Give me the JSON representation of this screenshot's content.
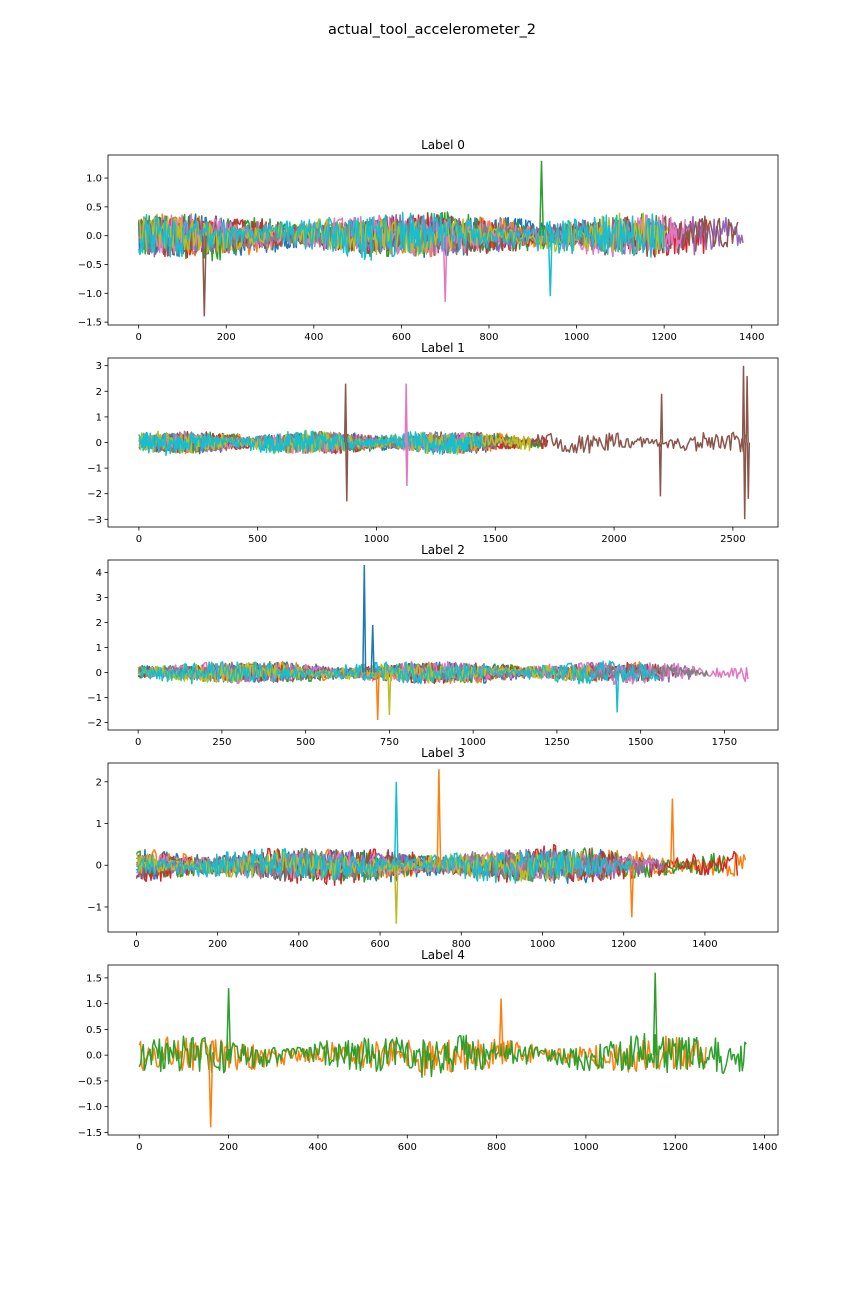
{
  "figure": {
    "title": "actual_tool_accelerometer_2"
  },
  "palette": [
    "#1f77b4",
    "#ff7f0e",
    "#2ca02c",
    "#d62728",
    "#9467bd",
    "#8c564b",
    "#e377c2",
    "#7f7f7f",
    "#bcbd22",
    "#17becf"
  ],
  "chart_data": [
    {
      "type": "line",
      "title": "Label 0",
      "xlim": [
        -70,
        1460
      ],
      "ylim": [
        -1.55,
        1.4
      ],
      "xticks": [
        0,
        200,
        400,
        600,
        800,
        1000,
        1200,
        1400
      ],
      "yticks": [
        -1.5,
        -1.0,
        -0.5,
        0.0,
        0.5,
        1.0
      ],
      "ytick_labels": [
        "−1.5",
        "−1.0",
        "−0.5",
        "0.0",
        "0.5",
        "1.0"
      ],
      "series": [
        {
          "color_index": 0,
          "length": 1000,
          "amplitude": 0.35
        },
        {
          "color_index": 1,
          "length": 1100,
          "amplitude": 0.35
        },
        {
          "color_index": 2,
          "length": 1200,
          "amplitude": 0.4
        },
        {
          "color_index": 3,
          "length": 1300,
          "amplitude": 0.35
        },
        {
          "color_index": 4,
          "length": 1380,
          "amplitude": 0.35
        },
        {
          "color_index": 5,
          "length": 1370,
          "amplitude": 0.35
        },
        {
          "color_index": 6,
          "length": 1250,
          "amplitude": 0.35
        },
        {
          "color_index": 7,
          "length": 1150,
          "amplitude": 0.3
        },
        {
          "color_index": 8,
          "length": 1210,
          "amplitude": 0.35
        },
        {
          "color_index": 9,
          "length": 1200,
          "amplitude": 0.4
        }
      ],
      "peaks": [
        {
          "series": 5,
          "x": 150,
          "y": -1.4
        },
        {
          "series": 2,
          "x": 920,
          "y": 1.3
        },
        {
          "series": 6,
          "x": 700,
          "y": -1.15
        },
        {
          "series": 9,
          "x": 940,
          "y": -1.05
        }
      ]
    },
    {
      "type": "line",
      "title": "Label 1",
      "xlim": [
        -130,
        2690
      ],
      "ylim": [
        -3.3,
        3.3
      ],
      "xticks": [
        0,
        500,
        1000,
        1500,
        2000,
        2500
      ],
      "yticks": [
        -3,
        -2,
        -1,
        0,
        1,
        2,
        3
      ],
      "ytick_labels": [
        "−3",
        "−2",
        "−1",
        "0",
        "1",
        "2",
        "3"
      ],
      "series": [
        {
          "color_index": 0,
          "length": 1500,
          "amplitude": 0.4
        },
        {
          "color_index": 1,
          "length": 1650,
          "amplitude": 0.4
        },
        {
          "color_index": 2,
          "length": 1700,
          "amplitude": 0.4
        },
        {
          "color_index": 3,
          "length": 1720,
          "amplitude": 0.4
        },
        {
          "color_index": 4,
          "length": 1500,
          "amplitude": 0.4
        },
        {
          "color_index": 5,
          "length": 2560,
          "amplitude": 0.4
        },
        {
          "color_index": 6,
          "length": 1400,
          "amplitude": 0.4
        },
        {
          "color_index": 7,
          "length": 1600,
          "amplitude": 0.4
        },
        {
          "color_index": 8,
          "length": 1650,
          "amplitude": 0.45
        },
        {
          "color_index": 9,
          "length": 1450,
          "amplitude": 0.45
        }
      ],
      "peaks": [
        {
          "series": 5,
          "x": 2545,
          "y": 3.0
        },
        {
          "series": 5,
          "x": 2550,
          "y": -3.0
        },
        {
          "series": 5,
          "x": 2560,
          "y": 2.6
        },
        {
          "series": 5,
          "x": 2565,
          "y": -2.2
        },
        {
          "series": 5,
          "x": 870,
          "y": 2.3
        },
        {
          "series": 5,
          "x": 875,
          "y": -2.3
        },
        {
          "series": 5,
          "x": 2200,
          "y": 1.9
        },
        {
          "series": 5,
          "x": 2195,
          "y": -2.1
        },
        {
          "series": 6,
          "x": 1125,
          "y": 2.3
        },
        {
          "series": 6,
          "x": 1128,
          "y": -1.7
        }
      ]
    },
    {
      "type": "line",
      "title": "Label 2",
      "xlim": [
        -90,
        1910
      ],
      "ylim": [
        -2.3,
        4.5
      ],
      "xticks": [
        0,
        250,
        500,
        750,
        1000,
        1250,
        1500,
        1750
      ],
      "yticks": [
        -2,
        -1,
        0,
        1,
        2,
        3,
        4
      ],
      "ytick_labels": [
        "−2",
        "−1",
        "0",
        "1",
        "2",
        "3",
        "4"
      ],
      "series": [
        {
          "color_index": 0,
          "length": 1300,
          "amplitude": 0.4
        },
        {
          "color_index": 1,
          "length": 1500,
          "amplitude": 0.4
        },
        {
          "color_index": 2,
          "length": 1400,
          "amplitude": 0.4
        },
        {
          "color_index": 3,
          "length": 1550,
          "amplitude": 0.4
        },
        {
          "color_index": 4,
          "length": 1650,
          "amplitude": 0.4
        },
        {
          "color_index": 5,
          "length": 1600,
          "amplitude": 0.35
        },
        {
          "color_index": 6,
          "length": 1820,
          "amplitude": 0.45
        },
        {
          "color_index": 7,
          "length": 1700,
          "amplitude": 0.35
        },
        {
          "color_index": 8,
          "length": 1350,
          "amplitude": 0.4
        },
        {
          "color_index": 9,
          "length": 1560,
          "amplitude": 0.45
        }
      ],
      "peaks": [
        {
          "series": 0,
          "x": 675,
          "y": 4.3
        },
        {
          "series": 1,
          "x": 715,
          "y": -1.9
        },
        {
          "series": 0,
          "x": 700,
          "y": 1.9
        },
        {
          "series": 8,
          "x": 750,
          "y": -1.7
        },
        {
          "series": 9,
          "x": 1430,
          "y": -1.6
        }
      ]
    },
    {
      "type": "line",
      "title": "Label 3",
      "xlim": [
        -70,
        1580
      ],
      "ylim": [
        -1.6,
        2.45
      ],
      "xticks": [
        0,
        200,
        400,
        600,
        800,
        1000,
        1200,
        1400
      ],
      "yticks": [
        -1,
        0,
        1,
        2
      ],
      "ytick_labels": [
        "−1",
        "0",
        "1",
        "2"
      ],
      "series": [
        {
          "color_index": 0,
          "length": 1150,
          "amplitude": 0.4
        },
        {
          "color_index": 1,
          "length": 1500,
          "amplitude": 0.4
        },
        {
          "color_index": 2,
          "length": 1450,
          "amplitude": 0.4
        },
        {
          "color_index": 3,
          "length": 1480,
          "amplitude": 0.45
        },
        {
          "color_index": 4,
          "length": 1300,
          "amplitude": 0.35
        },
        {
          "color_index": 5,
          "length": 1200,
          "amplitude": 0.35
        },
        {
          "color_index": 6,
          "length": 1280,
          "amplitude": 0.35
        },
        {
          "color_index": 7,
          "length": 1250,
          "amplitude": 0.35
        },
        {
          "color_index": 8,
          "length": 1100,
          "amplitude": 0.35
        },
        {
          "color_index": 9,
          "length": 1220,
          "amplitude": 0.4
        }
      ],
      "peaks": [
        {
          "series": 1,
          "x": 745,
          "y": 2.3
        },
        {
          "series": 9,
          "x": 640,
          "y": 2.0
        },
        {
          "series": 8,
          "x": 640,
          "y": -1.4
        },
        {
          "series": 1,
          "x": 1320,
          "y": 1.6
        },
        {
          "series": 1,
          "x": 1220,
          "y": -1.25
        }
      ]
    },
    {
      "type": "line",
      "title": "Label 4",
      "xlim": [
        -70,
        1430
      ],
      "ylim": [
        -1.55,
        1.75
      ],
      "xticks": [
        0,
        200,
        400,
        600,
        800,
        1000,
        1200,
        1400
      ],
      "yticks": [
        -1.5,
        -1.0,
        -0.5,
        0.0,
        0.5,
        1.0,
        1.5
      ],
      "ytick_labels": [
        "−1.5",
        "−1.0",
        "−0.5",
        "0.0",
        "0.5",
        "1.0",
        "1.5"
      ],
      "series": [
        {
          "color_index": 1,
          "length": 1270,
          "amplitude": 0.35
        },
        {
          "color_index": 2,
          "length": 1360,
          "amplitude": 0.4
        }
      ],
      "peaks": [
        {
          "series": 1,
          "x": 1155,
          "y": 1.6
        },
        {
          "series": 0,
          "x": 160,
          "y": -1.4
        },
        {
          "series": 1,
          "x": 200,
          "y": 1.3
        },
        {
          "series": 0,
          "x": 810,
          "y": 1.1
        }
      ]
    }
  ]
}
